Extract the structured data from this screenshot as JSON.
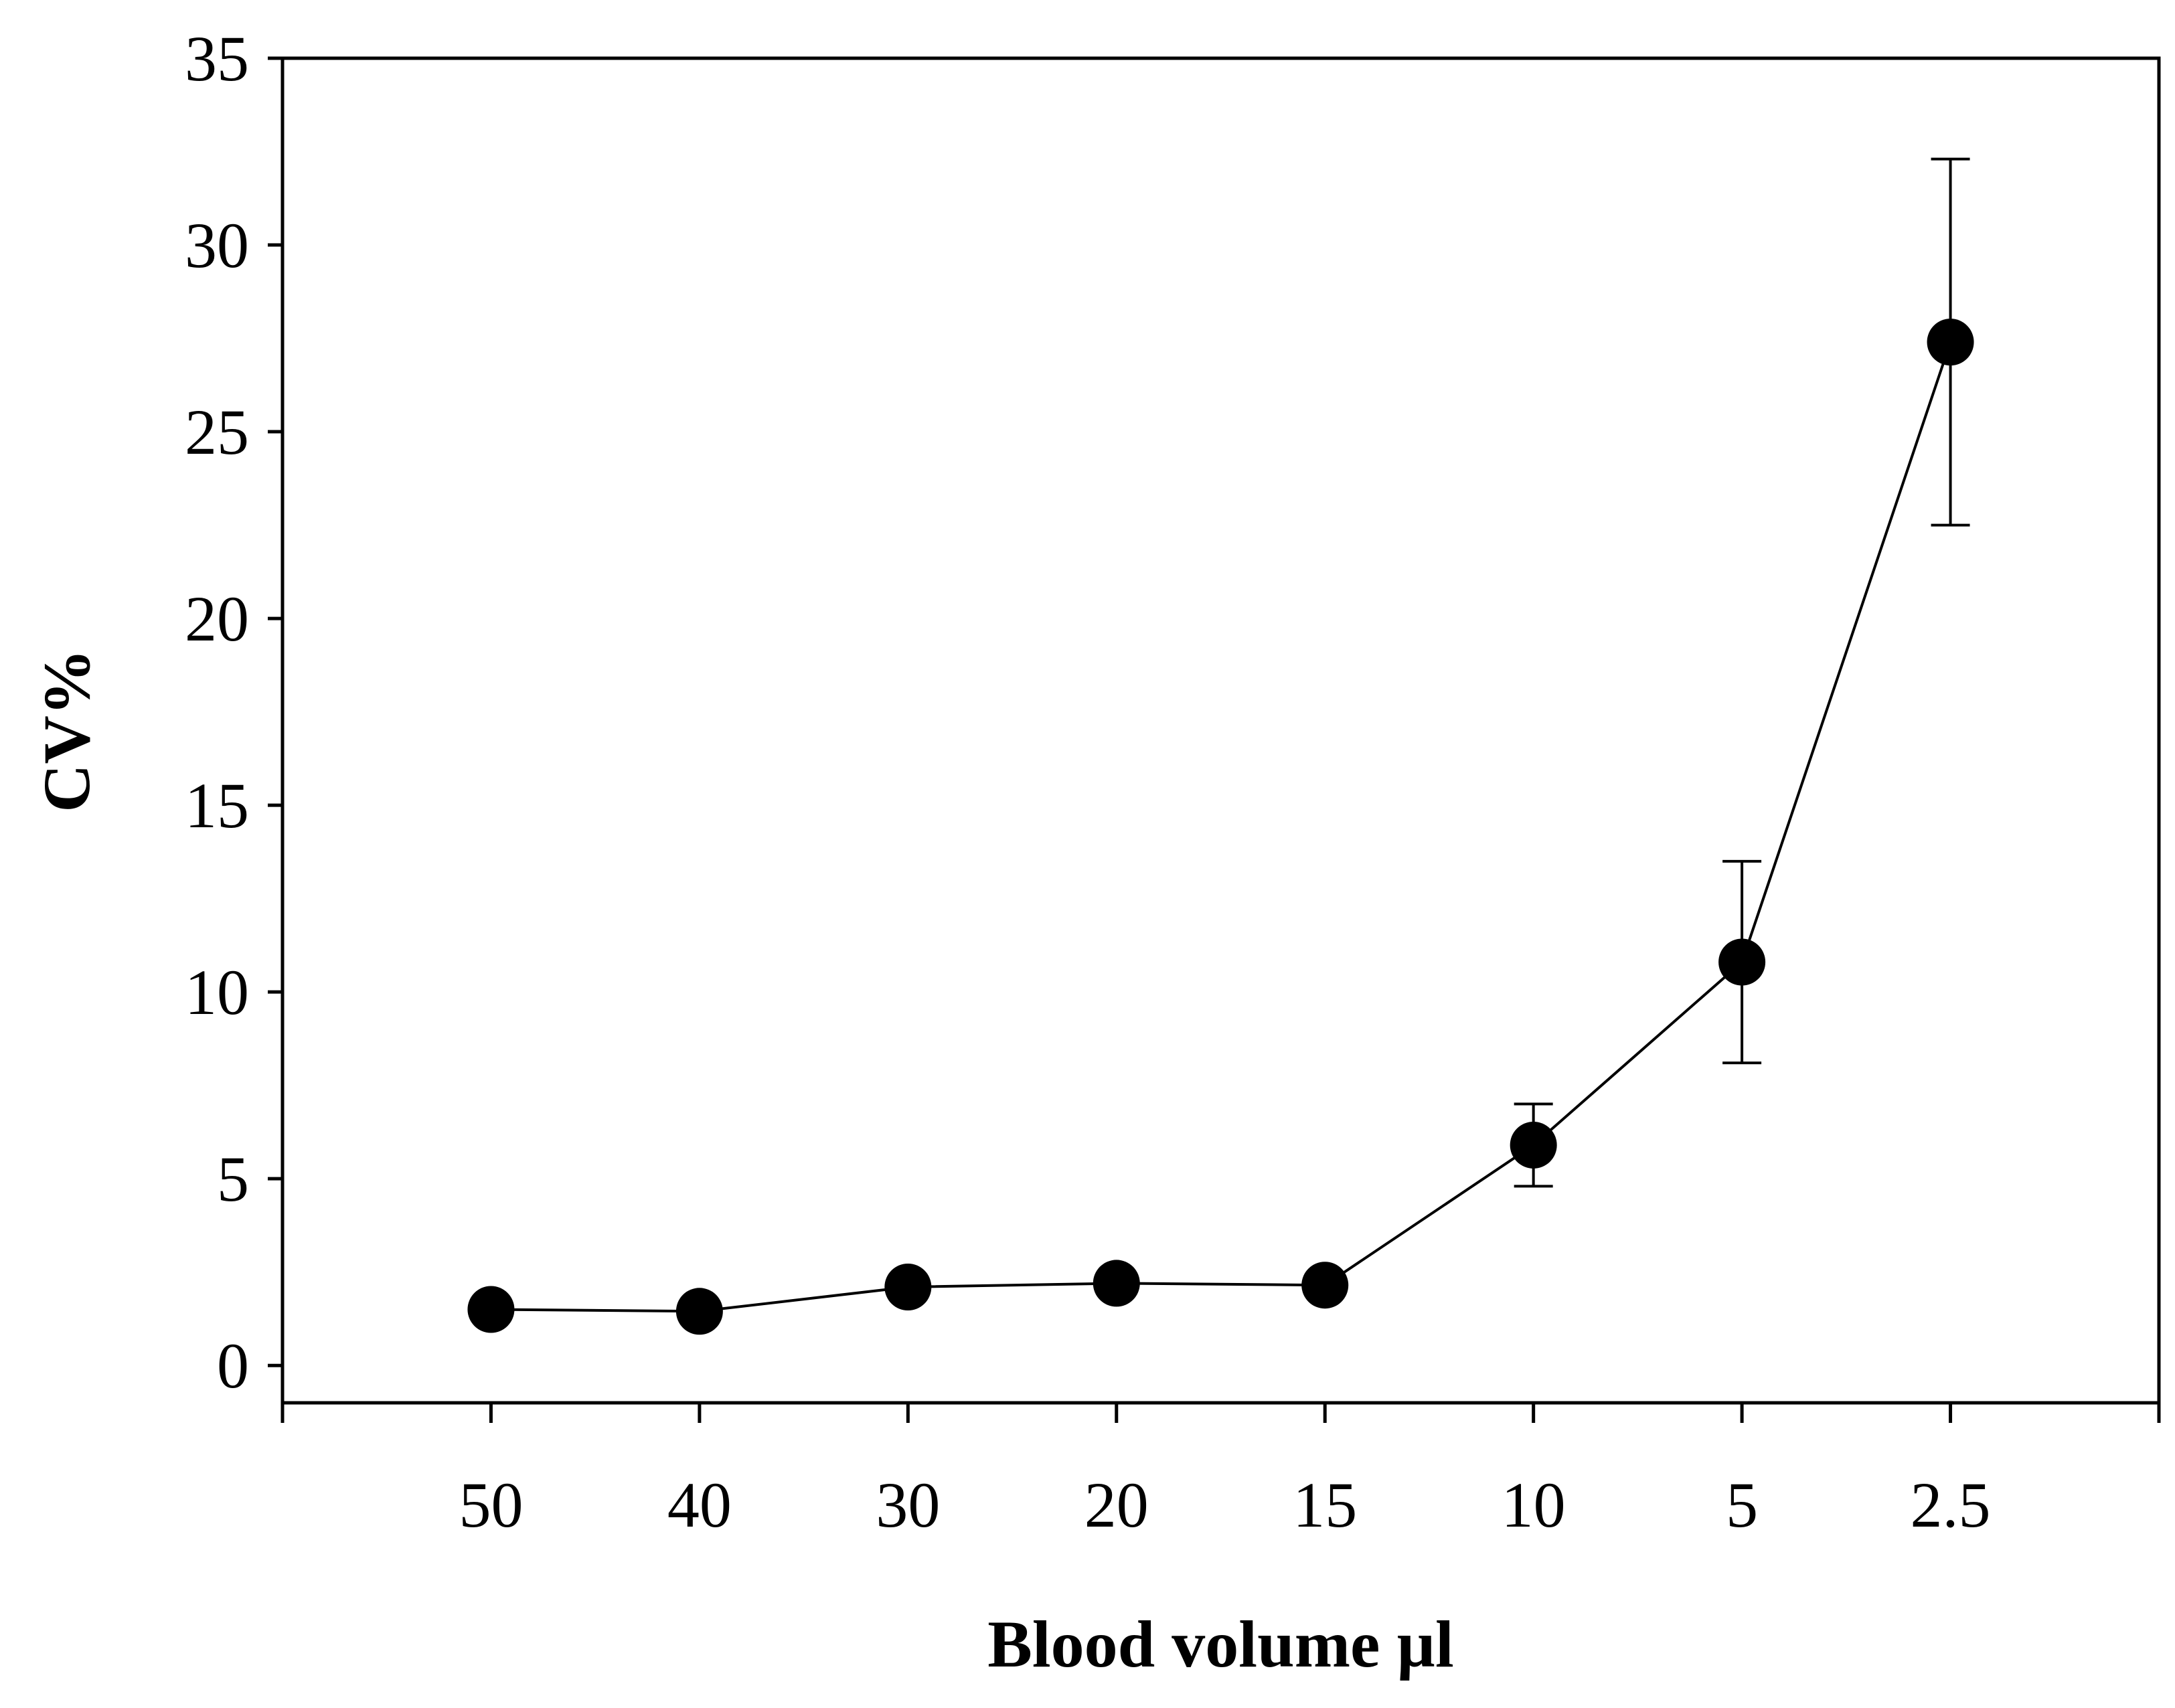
{
  "chart_data": {
    "type": "line",
    "title": "",
    "xlabel": "Blood volume µl",
    "ylabel": "CV%",
    "ylim": [
      -1,
      35
    ],
    "yticks": [
      0,
      5,
      10,
      15,
      20,
      25,
      30,
      35
    ],
    "categories": [
      "50",
      "40",
      "30",
      "20",
      "15",
      "10",
      "5",
      "2.5"
    ],
    "series": [
      {
        "values": [
          1.5,
          1.45,
          2.1,
          2.2,
          2.15,
          5.9,
          10.8,
          27.4
        ],
        "error_low": [
          null,
          null,
          null,
          null,
          null,
          4.8,
          8.1,
          22.5
        ],
        "error_high": [
          null,
          null,
          null,
          null,
          null,
          7.0,
          13.5,
          32.3
        ],
        "marker": "filled-circle",
        "color": "#000000"
      }
    ],
    "grid": false,
    "legend": "none"
  }
}
